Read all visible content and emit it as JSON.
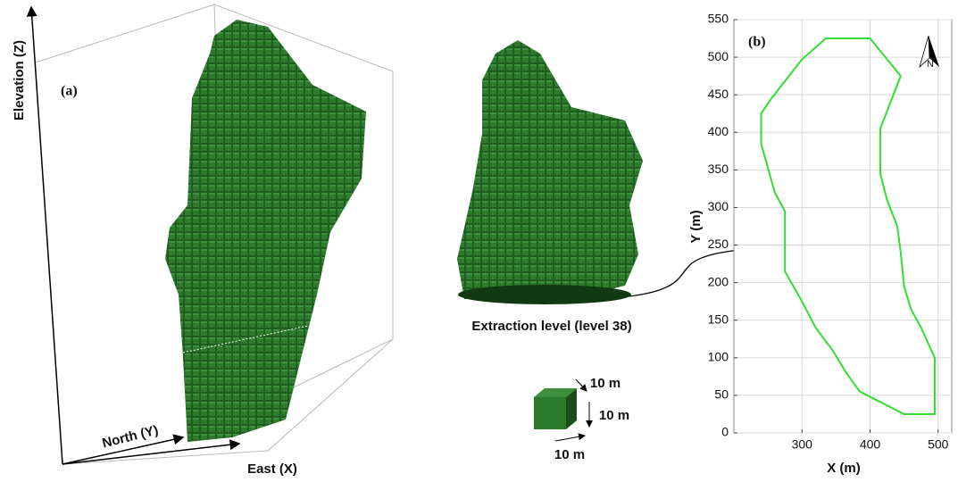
{
  "panel_a": {
    "label": "(a)",
    "axis_z": "Elevation (Z)",
    "axis_y": "North (Y)",
    "axis_x": "East (X)"
  },
  "extraction_label": "Extraction level (level 38)",
  "block_dims": [
    "10 m",
    "10 m",
    "10 m"
  ],
  "chart_data": {
    "type": "line",
    "label": "(b)",
    "x_label": "X (m)",
    "y_label": "Y (m)",
    "north": "N",
    "grid": true,
    "xlim": [
      200,
      520
    ],
    "ylim": [
      0,
      550
    ],
    "xticks": [
      300,
      400,
      500
    ],
    "yticks": [
      0,
      50,
      100,
      150,
      200,
      250,
      300,
      350,
      400,
      450,
      500,
      550
    ],
    "series": [
      {
        "color": "#33dd33",
        "x": [
          335,
          400,
          445,
          430,
          415,
          415,
          425,
          440,
          445,
          450,
          460,
          475,
          495,
          495,
          450,
          385,
          365,
          345,
          320,
          300,
          275,
          275,
          260,
          240,
          240,
          255,
          300,
          335
        ],
        "values": [
          525,
          525,
          475,
          440,
          405,
          345,
          310,
          275,
          240,
          195,
          165,
          140,
          100,
          25,
          25,
          55,
          80,
          110,
          140,
          175,
          215,
          295,
          320,
          385,
          425,
          445,
          497,
          525
        ]
      }
    ]
  }
}
